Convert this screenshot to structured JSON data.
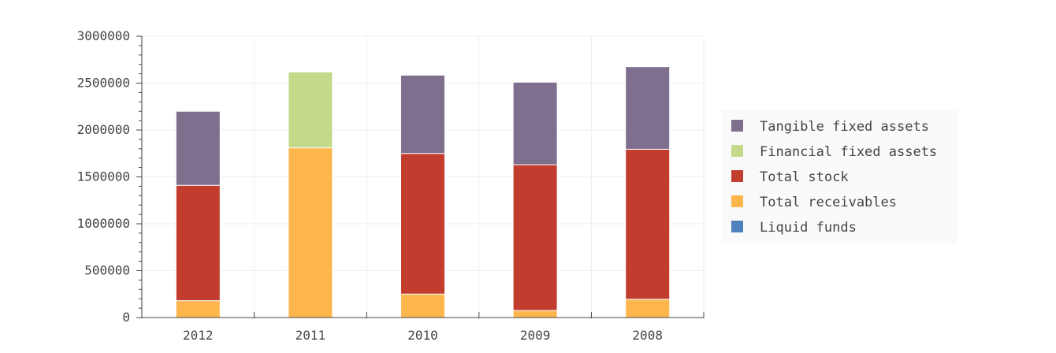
{
  "chart_data": {
    "type": "bar",
    "stacked": true,
    "categories": [
      "2012",
      "2011",
      "2010",
      "2009",
      "2008"
    ],
    "series": [
      {
        "name": "Liquid funds",
        "color": "#4f81bd",
        "values": [
          0,
          0,
          0,
          0,
          0
        ]
      },
      {
        "name": "Total receivables",
        "color": "#fdb64c",
        "values": [
          180000,
          1810000,
          250000,
          75000,
          195000
        ]
      },
      {
        "name": "Total stock",
        "color": "#c33d2e",
        "values": [
          1230000,
          0,
          1500000,
          1555000,
          1600000
        ]
      },
      {
        "name": "Financial fixed assets",
        "color": "#c4da8a",
        "values": [
          0,
          810000,
          0,
          0,
          0
        ]
      },
      {
        "name": "Tangible fixed assets",
        "color": "#7f6f8f",
        "values": [
          790000,
          0,
          835000,
          880000,
          880000
        ]
      }
    ],
    "y_ticks": [
      "0",
      "500000",
      "1000000",
      "1500000",
      "2000000",
      "2500000",
      "3000000"
    ],
    "ylim": [
      0,
      3000000
    ],
    "grid": true,
    "legend_position": "right",
    "legend_order": [
      "Tangible fixed assets",
      "Financial fixed assets",
      "Total stock",
      "Total receivables",
      "Liquid funds"
    ]
  }
}
